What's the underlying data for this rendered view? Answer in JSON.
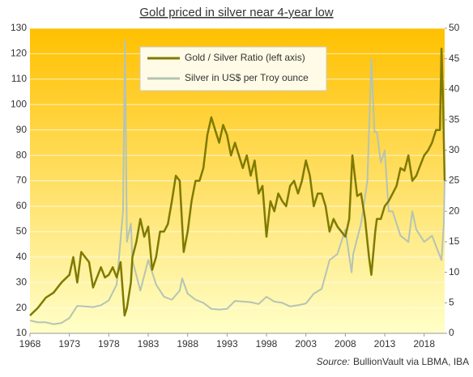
{
  "chart_data": {
    "type": "line",
    "title": "Gold priced in silver near 4-year low",
    "source_label": "Source:",
    "source": "BullionVault via LBMA, IBA",
    "xlim": [
      1968,
      2020.6
    ],
    "xticks": [
      1968,
      1973,
      1978,
      1983,
      1988,
      1993,
      1998,
      2003,
      2008,
      2013,
      2018
    ],
    "ylim": [
      10,
      130
    ],
    "yticks": [
      10,
      20,
      30,
      40,
      50,
      60,
      70,
      80,
      90,
      100,
      110,
      120,
      130
    ],
    "y2lim": [
      0,
      50
    ],
    "y2ticks": [
      0,
      5,
      10,
      15,
      20,
      25,
      30,
      35,
      40,
      45,
      50
    ],
    "grid": true,
    "legend": "top-center",
    "series": [
      {
        "name": "Silver in US$ per Troy ounce",
        "color": "#b4c4b4",
        "axis": "y2",
        "x": [
          1968,
          1969,
          1970,
          1971,
          1972,
          1973,
          1974,
          1975,
          1976,
          1977,
          1978,
          1979,
          1979.8,
          1980.05,
          1980.3,
          1980.8,
          1981,
          1982,
          1983,
          1983.5,
          1984,
          1985,
          1986,
          1987,
          1987.3,
          1988,
          1989,
          1990,
          1991,
          1992,
          1993,
          1994,
          1995,
          1996,
          1997,
          1998,
          1999,
          2000,
          2001,
          2002,
          2003,
          2004,
          2005,
          2006,
          2007,
          2008,
          2008.8,
          2009,
          2010,
          2010.8,
          2011.3,
          2011.7,
          2012,
          2012.5,
          2013,
          2013.5,
          2014,
          2015,
          2016,
          2016.5,
          2017,
          2018,
          2019,
          2020.2,
          2020.5,
          2020.6
        ],
        "values": [
          2.1,
          1.8,
          1.8,
          1.5,
          1.7,
          2.5,
          4.5,
          4.4,
          4.3,
          4.6,
          5.4,
          8,
          20,
          48,
          15,
          18,
          12,
          7,
          12,
          10,
          8,
          6,
          5.5,
          7,
          9,
          6.5,
          5.5,
          5,
          4,
          3.9,
          4,
          5.3,
          5.2,
          5.1,
          4.8,
          6,
          5.2,
          5,
          4.4,
          4.6,
          4.9,
          6.5,
          7.3,
          12,
          13,
          17,
          10,
          13,
          18,
          25,
          45,
          33,
          33,
          28,
          30,
          20,
          20,
          16,
          15,
          20,
          17,
          15,
          16,
          12,
          18,
          25
        ]
      },
      {
        "name": "Gold / Silver Ratio (left axis)",
        "color": "#7f7a00",
        "axis": "y",
        "x": [
          1968,
          1969,
          1970,
          1971,
          1972,
          1973,
          1973.5,
          1974,
          1974.5,
          1975,
          1975.5,
          1976,
          1977,
          1977.5,
          1978,
          1978.5,
          1979,
          1979.5,
          1980,
          1980.3,
          1980.8,
          1981,
          1981.5,
          1982,
          1982.5,
          1983,
          1983.5,
          1984,
          1984.5,
          1985,
          1985.5,
          1986,
          1986.5,
          1987,
          1987.5,
          1988,
          1988.5,
          1989,
          1989.5,
          1990,
          1990.5,
          1991,
          1991.5,
          1992,
          1992.5,
          1993,
          1993.5,
          1994,
          1995,
          1995.5,
          1996,
          1996.5,
          1997,
          1997.5,
          1998,
          1998.5,
          1999,
          1999.5,
          2000,
          2000.5,
          2001,
          2001.5,
          2002,
          2002.5,
          2003,
          2003.5,
          2004,
          2004.5,
          2005,
          2005.5,
          2006,
          2006.5,
          2007,
          2007.5,
          2008,
          2008.5,
          2008.9,
          2009.5,
          2010,
          2010.5,
          2011,
          2011.3,
          2011.8,
          2012,
          2012.5,
          2013,
          2013.5,
          2014,
          2014.5,
          2015,
          2015.5,
          2016,
          2016.5,
          2017,
          2017.5,
          2018,
          2018.5,
          2019,
          2019.5,
          2020,
          2020.2,
          2020.4,
          2020.6
        ],
        "values": [
          17,
          20,
          24,
          26,
          30,
          33,
          40,
          30,
          42,
          40,
          38,
          28,
          36,
          32,
          33,
          36,
          32,
          38,
          17,
          20,
          30,
          40,
          46,
          55,
          48,
          52,
          35,
          40,
          50,
          50,
          53,
          62,
          72,
          70,
          42,
          50,
          62,
          70,
          70,
          75,
          88,
          95,
          90,
          85,
          92,
          88,
          80,
          85,
          75,
          80,
          72,
          78,
          65,
          68,
          48,
          62,
          58,
          65,
          62,
          60,
          68,
          70,
          65,
          70,
          78,
          72,
          60,
          65,
          65,
          60,
          50,
          55,
          52,
          50,
          48,
          55,
          80,
          64,
          65,
          55,
          40,
          33,
          50,
          55,
          55,
          60,
          62,
          65,
          68,
          75,
          74,
          80,
          70,
          72,
          76,
          80,
          82,
          85,
          90,
          90,
          122,
          100,
          70
        ]
      }
    ]
  }
}
